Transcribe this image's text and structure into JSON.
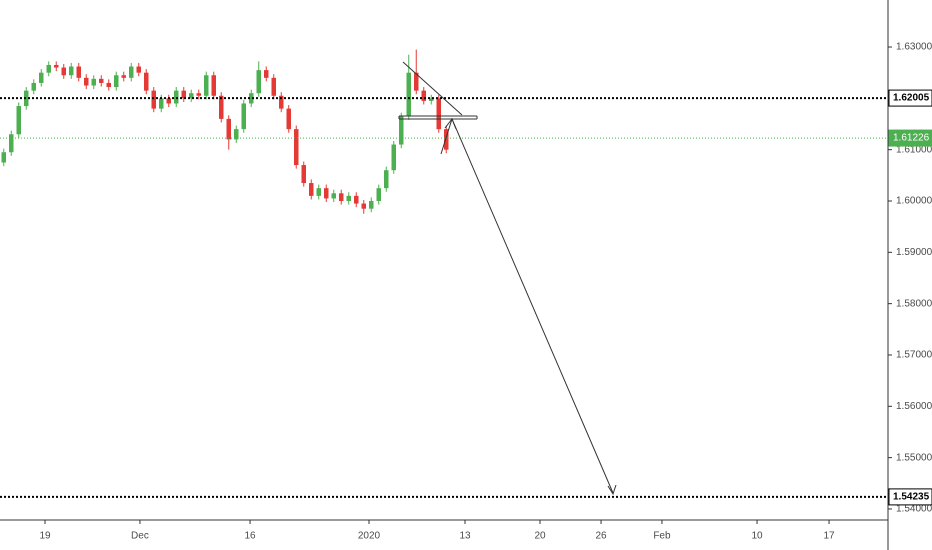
{
  "chart_data": {
    "type": "candlestick",
    "up_color": "#4caf50",
    "down_color": "#e53935",
    "x": [
      0.25,
      0.75,
      1.25,
      1.75,
      2.25,
      2.75,
      3.25,
      3.75,
      4.25,
      4.75,
      5.25,
      5.75,
      6.25,
      6.75,
      7.25,
      7.75,
      8.25,
      8.75,
      9.25,
      9.75,
      10.25,
      10.75,
      11.25,
      11.75,
      12.25,
      12.75,
      13.25,
      13.75,
      14.25,
      14.75,
      15.25,
      15.75,
      16.25,
      16.75,
      17.25,
      17.75,
      18.25,
      18.75,
      19.25,
      19.75,
      20.25,
      20.75,
      21.25,
      21.75,
      22.25,
      22.75,
      23.25,
      23.75,
      24.25,
      24.75,
      25.25,
      25.75,
      26.25,
      26.75,
      27.25,
      27.75,
      28.25,
      28.75,
      29.25,
      29.75
    ],
    "open": [
      1.6075,
      1.6095,
      1.613,
      1.6185,
      1.6215,
      1.623,
      1.625,
      1.6265,
      1.626,
      1.6245,
      1.6262,
      1.624,
      1.6225,
      1.6238,
      1.623,
      1.6222,
      1.6245,
      1.624,
      1.6262,
      1.625,
      1.6215,
      1.618,
      1.62,
      1.619,
      1.6215,
      1.62,
      1.621,
      1.6205,
      1.6245,
      1.6205,
      1.616,
      1.612,
      1.614,
      1.619,
      1.621,
      1.6255,
      1.624,
      1.6205,
      1.618,
      1.614,
      1.607,
      1.6035,
      1.601,
      1.6025,
      1.6005,
      1.6015,
      1.6,
      1.601,
      1.5995,
      1.5985,
      1.6,
      1.6025,
      1.606,
      1.611,
      1.6165,
      1.625,
      1.6215,
      1.6195,
      1.62,
      1.614
    ],
    "high": [
      1.6102,
      1.6137,
      1.6192,
      1.6222,
      1.6237,
      1.6257,
      1.6272,
      1.6272,
      1.6267,
      1.6269,
      1.6269,
      1.6247,
      1.6245,
      1.6245,
      1.6237,
      1.6252,
      1.6252,
      1.6269,
      1.6269,
      1.6257,
      1.6222,
      1.6207,
      1.6207,
      1.6222,
      1.6222,
      1.6217,
      1.6217,
      1.6252,
      1.6252,
      1.6212,
      1.6167,
      1.6147,
      1.6197,
      1.6217,
      1.6272,
      1.6262,
      1.6247,
      1.6212,
      1.6187,
      1.6147,
      1.6077,
      1.6042,
      1.6032,
      1.6032,
      1.6022,
      1.6022,
      1.6017,
      1.6017,
      1.6002,
      1.6007,
      1.6032,
      1.6067,
      1.6117,
      1.6172,
      1.6285,
      1.6295,
      1.6222,
      1.6207,
      1.6207,
      1.6147
    ],
    "low": [
      1.6068,
      1.6088,
      1.6123,
      1.6178,
      1.6208,
      1.6223,
      1.6243,
      1.6253,
      1.6238,
      1.6238,
      1.6233,
      1.6218,
      1.6218,
      1.6223,
      1.6215,
      1.6215,
      1.6233,
      1.6233,
      1.6243,
      1.6208,
      1.6173,
      1.6173,
      1.6183,
      1.6183,
      1.6193,
      1.6193,
      1.6198,
      1.6198,
      1.6198,
      1.6153,
      1.61,
      1.6113,
      1.6133,
      1.6183,
      1.6203,
      1.6233,
      1.6198,
      1.6173,
      1.6133,
      1.6063,
      1.6028,
      1.6003,
      1.6003,
      1.5998,
      1.5998,
      1.5993,
      1.5993,
      1.5988,
      1.5975,
      1.5978,
      1.5993,
      1.6018,
      1.6053,
      1.6103,
      1.6158,
      1.6208,
      1.6188,
      1.6188,
      1.6133,
      1.6093
    ],
    "close": [
      1.6095,
      1.613,
      1.6185,
      1.6215,
      1.623,
      1.625,
      1.6265,
      1.626,
      1.6245,
      1.6262,
      1.624,
      1.6225,
      1.6238,
      1.623,
      1.6222,
      1.6245,
      1.624,
      1.6262,
      1.625,
      1.6215,
      1.618,
      1.62,
      1.619,
      1.6215,
      1.62,
      1.621,
      1.6205,
      1.6245,
      1.6205,
      1.616,
      1.612,
      1.614,
      1.619,
      1.621,
      1.6255,
      1.624,
      1.6205,
      1.618,
      1.614,
      1.607,
      1.6035,
      1.601,
      1.6025,
      1.6005,
      1.6015,
      1.6,
      1.601,
      1.5995,
      1.5985,
      1.6,
      1.6025,
      1.606,
      1.611,
      1.6165,
      1.625,
      1.6215,
      1.6195,
      1.62,
      1.614,
      1.61
    ],
    "xlim": [
      0,
      59.2
    ],
    "xticks": [
      {
        "value": 3.0,
        "label": "19"
      },
      {
        "value": 9.33,
        "label": "Dec"
      },
      {
        "value": 16.67,
        "label": "16"
      },
      {
        "value": 24.6,
        "label": "2020"
      },
      {
        "value": 31.0,
        "label": "13"
      },
      {
        "value": 36.0,
        "label": "20"
      },
      {
        "value": 40.07,
        "label": "26"
      },
      {
        "value": 44.13,
        "label": "Feb"
      },
      {
        "value": 50.47,
        "label": "10"
      },
      {
        "value": 55.27,
        "label": "17"
      }
    ],
    "ylim": [
      1.53785,
      1.63916
    ],
    "yticks": [
      {
        "value": 1.63,
        "label": "1.63000"
      },
      {
        "value": 1.62,
        "label": "1.62000"
      },
      {
        "value": 1.61,
        "label": "1.61000"
      },
      {
        "value": 1.6,
        "label": "1.60000"
      },
      {
        "value": 1.59,
        "label": "1.59000"
      },
      {
        "value": 1.58,
        "label": "1.58000"
      },
      {
        "value": 1.57,
        "label": "1.57000"
      },
      {
        "value": 1.56,
        "label": "1.56000"
      },
      {
        "value": 1.55,
        "label": "1.55000"
      },
      {
        "value": 1.54,
        "label": "1.54000"
      }
    ],
    "levels": [
      {
        "value": 1.62005,
        "label": "1.62005",
        "color": "#000000",
        "style": "dotted"
      },
      {
        "value": 1.61226,
        "label": "1.61226",
        "color": "#4caf50",
        "style": "current"
      },
      {
        "value": 1.54235,
        "label": "1.54235",
        "color": "#000000",
        "style": "dotted"
      }
    ]
  }
}
